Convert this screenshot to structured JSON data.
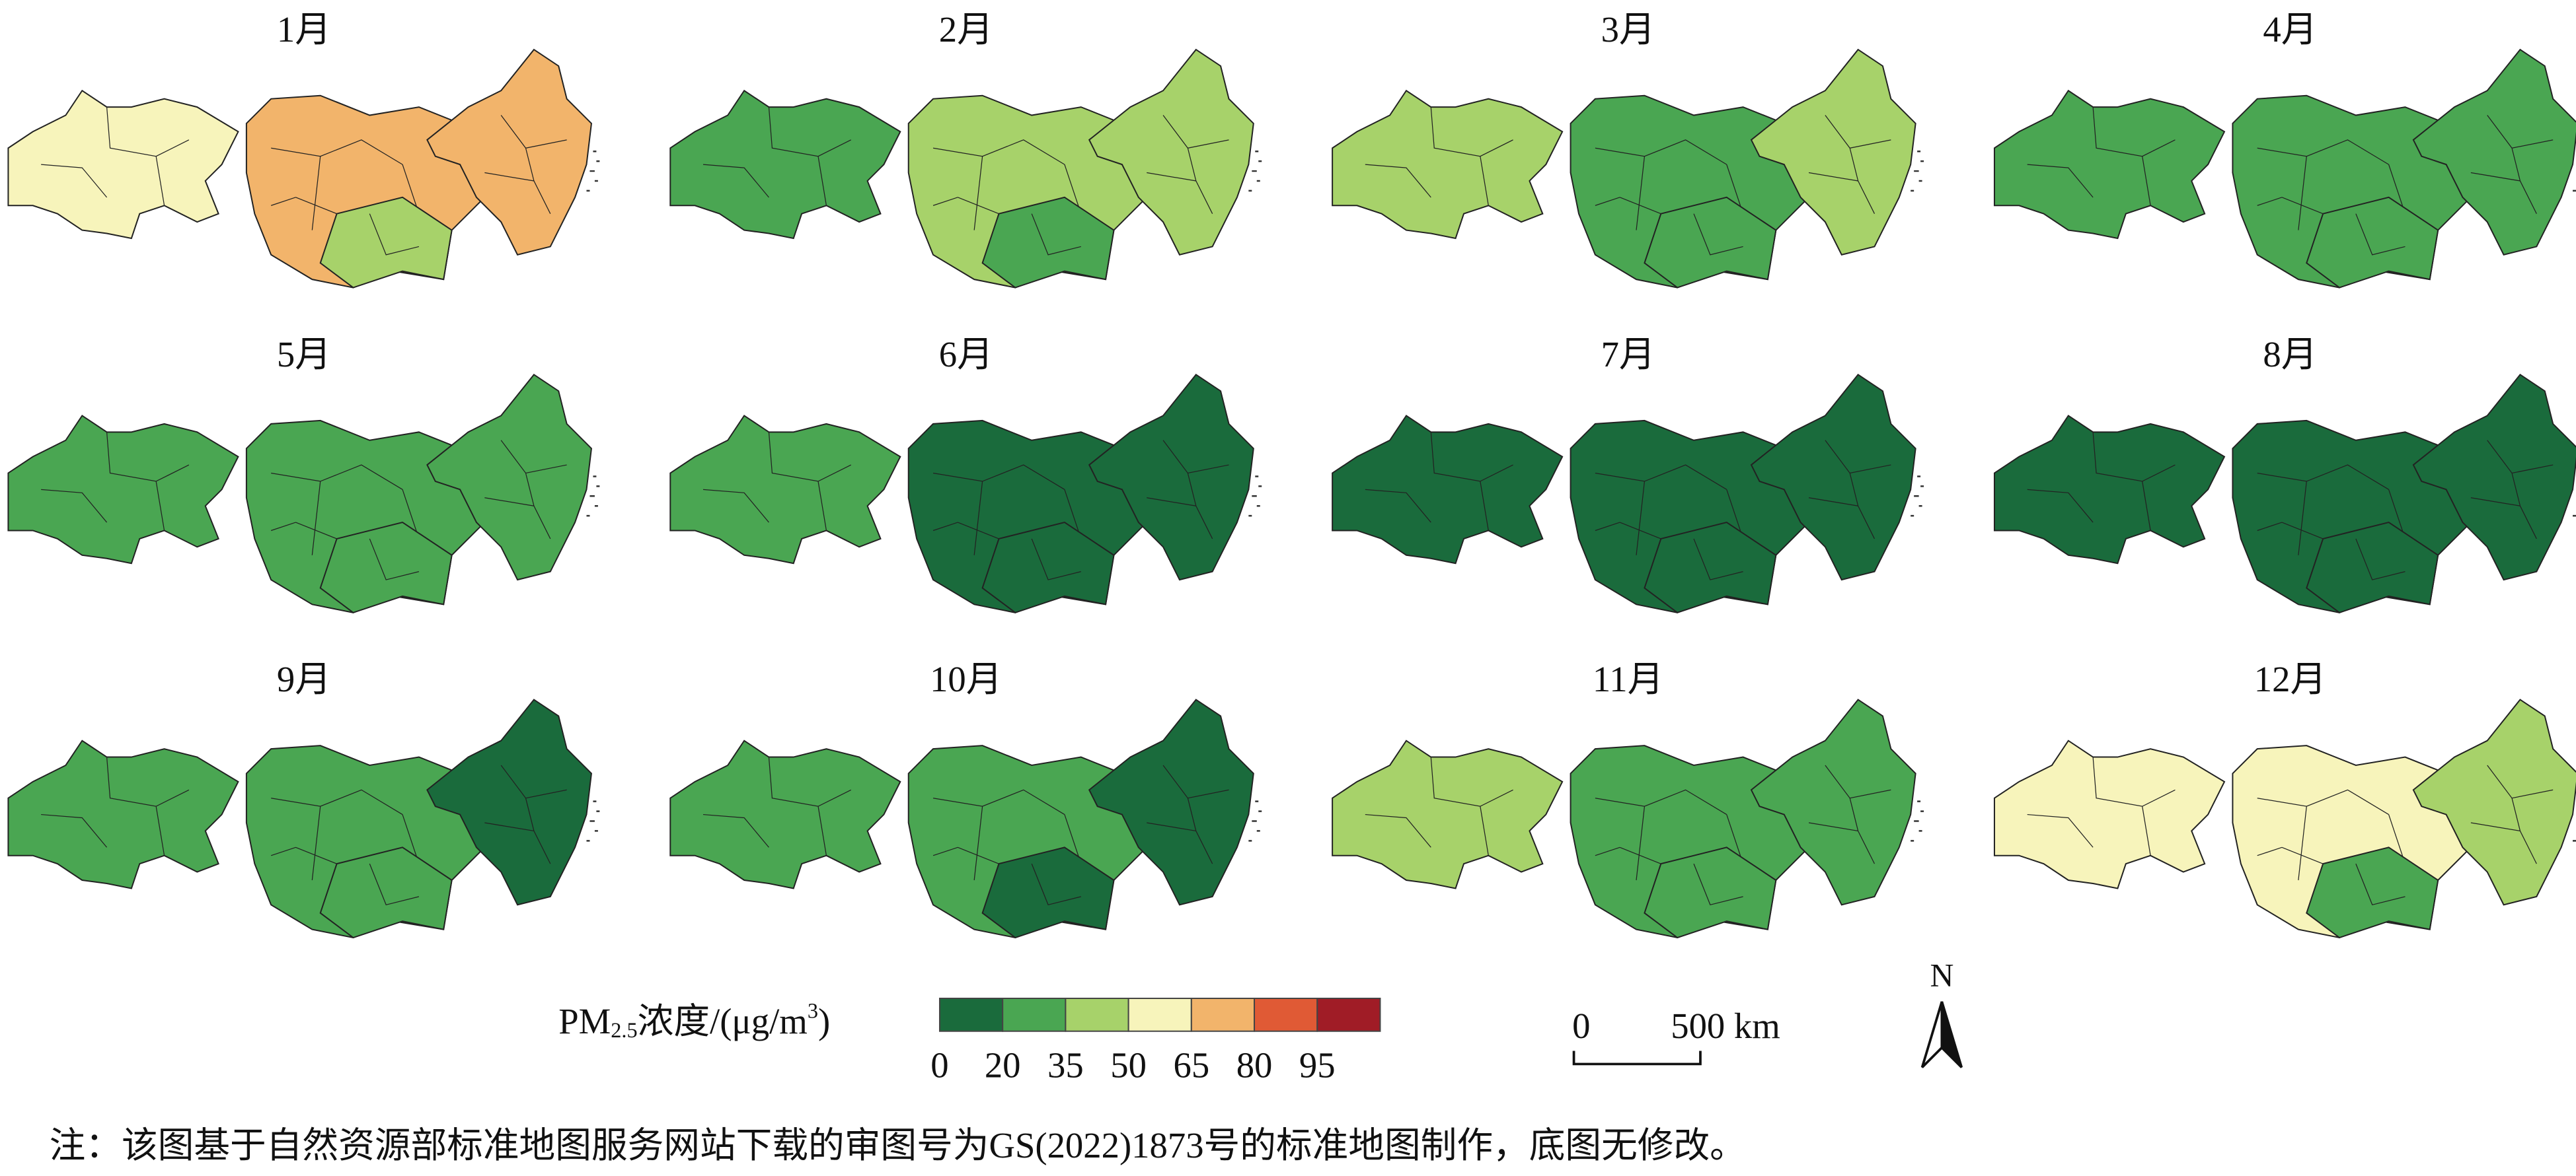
{
  "maps": [
    {
      "label": "1月",
      "fills": [
        "#f7f4bb",
        "#f2b46b",
        "#a7d26a",
        "#f2b46b"
      ]
    },
    {
      "label": "2月",
      "fills": [
        "#4aa652",
        "#a7d26a",
        "#4aa652",
        "#a7d26a"
      ]
    },
    {
      "label": "3月",
      "fills": [
        "#a7d26a",
        "#4aa652",
        "#4aa652",
        "#a7d26a"
      ]
    },
    {
      "label": "4月",
      "fills": [
        "#4aa652",
        "#4aa652",
        "#4aa652",
        "#4aa652"
      ]
    },
    {
      "label": "5月",
      "fills": [
        "#4aa652",
        "#4aa652",
        "#4aa652",
        "#4aa652"
      ]
    },
    {
      "label": "6月",
      "fills": [
        "#4aa652",
        "#1a6b3c",
        "#1a6b3c",
        "#1a6b3c"
      ]
    },
    {
      "label": "7月",
      "fills": [
        "#1a6b3c",
        "#1a6b3c",
        "#1a6b3c",
        "#1a6b3c"
      ]
    },
    {
      "label": "8月",
      "fills": [
        "#1a6b3c",
        "#1a6b3c",
        "#1a6b3c",
        "#1a6b3c"
      ]
    },
    {
      "label": "9月",
      "fills": [
        "#4aa652",
        "#4aa652",
        "#4aa652",
        "#1a6b3c"
      ]
    },
    {
      "label": "10月",
      "fills": [
        "#4aa652",
        "#4aa652",
        "#1a6b3c",
        "#1a6b3c"
      ]
    },
    {
      "label": "11月",
      "fills": [
        "#a7d26a",
        "#4aa652",
        "#4aa652",
        "#4aa652"
      ]
    },
    {
      "label": "12月",
      "fills": [
        "#f7f4bb",
        "#f7f4bb",
        "#4aa652",
        "#a7d26a"
      ]
    }
  ],
  "legend": {
    "title_main": "PM",
    "title_sub": "2.5",
    "title_rest": "浓度/(μg/m",
    "title_sup": "3",
    "title_end": ")",
    "colors": [
      "#1a6b3c",
      "#4aa652",
      "#a7d26a",
      "#f7f4bb",
      "#f2b46b",
      "#e05a35",
      "#a01c26"
    ],
    "breaks": [
      0,
      20,
      35,
      50,
      65,
      80,
      95
    ]
  },
  "scale_bar": {
    "start": "0",
    "end": "500 km"
  },
  "north": "N",
  "note": "注：该图基于自然资源部标准地图服务网站下载的审图号为GS(2022)1873号的标准地图制作，底图无修改。"
}
